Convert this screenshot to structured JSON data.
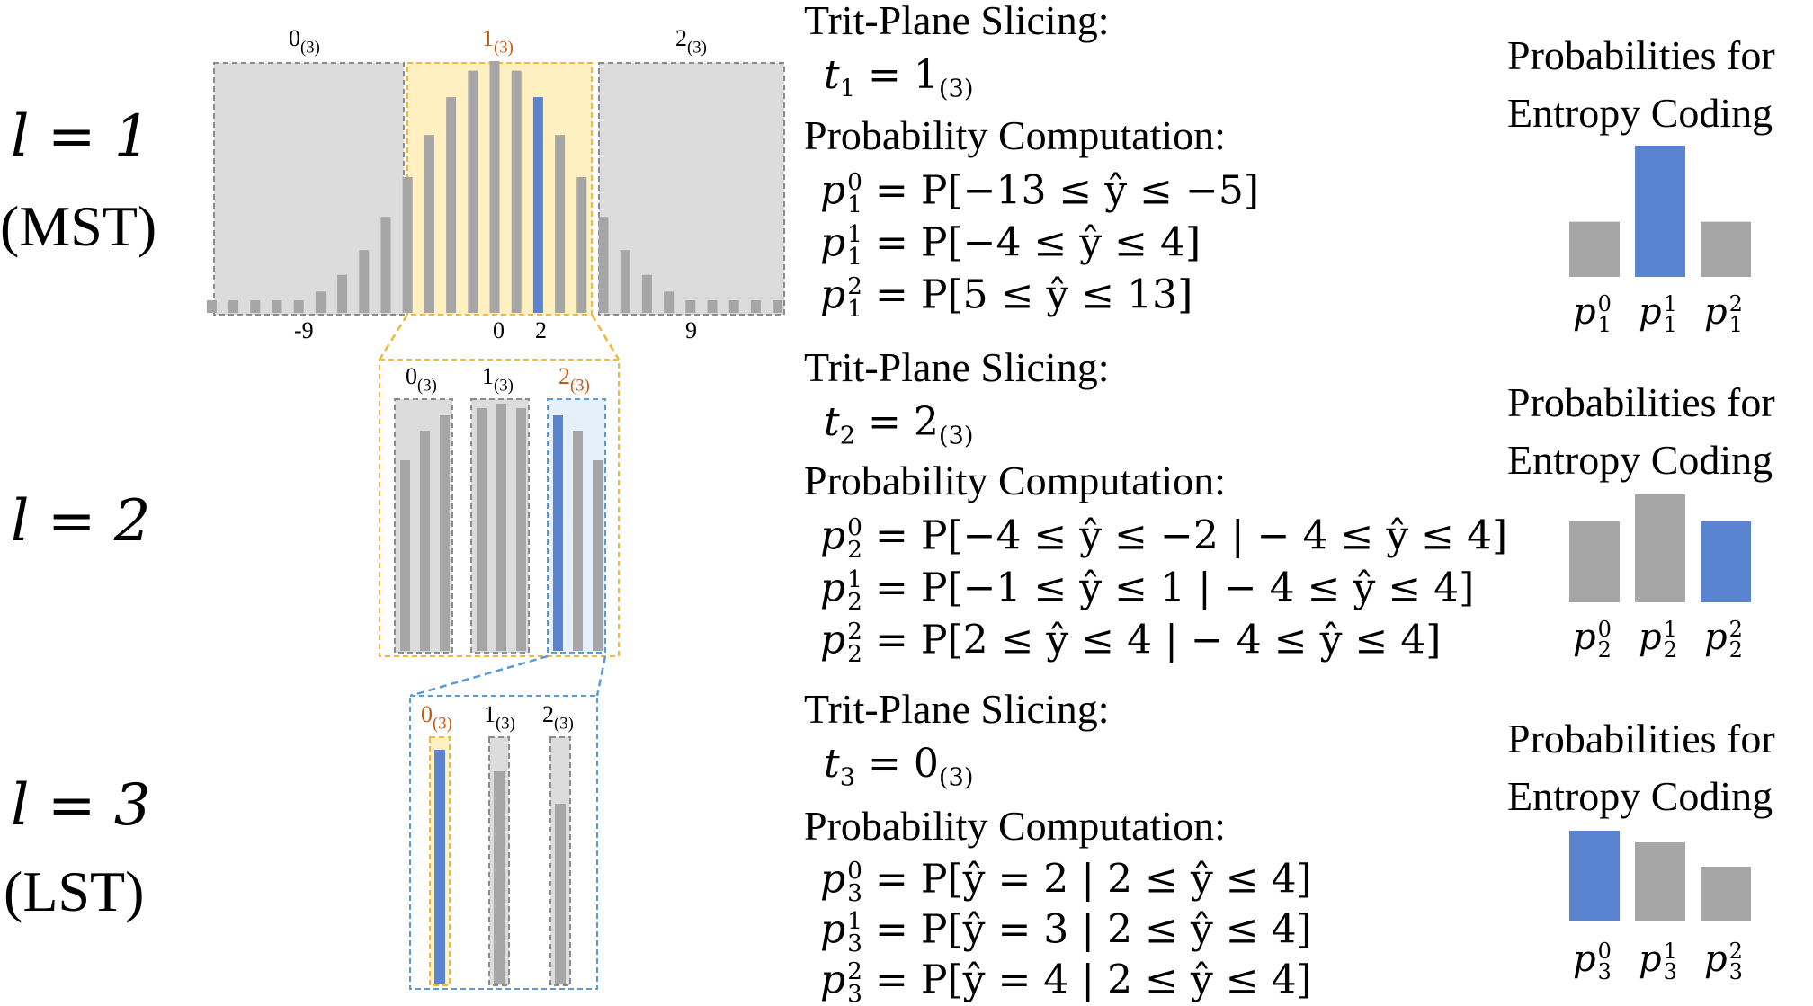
{
  "levels": [
    {
      "label": "l = 1",
      "sublabel": "(MST)",
      "slicing_title": "Trit-Plane Slicing:",
      "trit": {
        "var": "t",
        "index": "1",
        "value": "1",
        "base": "(3)"
      },
      "computation_title": "Probability Computation:",
      "equations": [
        {
          "k": "0",
          "idx": "1",
          "rhs": "= P[−13 ≤ ŷ ≤ −5]"
        },
        {
          "k": "1",
          "idx": "1",
          "rhs": "= P[−4 ≤ ŷ ≤ 4]"
        },
        {
          "k": "2",
          "idx": "1",
          "rhs": "= P[5 ≤ ŷ ≤ 13]"
        }
      ],
      "prob_title_1": "Probabilities for",
      "prob_title_2": "Entropy Coding",
      "prob_values": [
        0.42,
        1.0,
        0.42
      ],
      "selected": 1
    },
    {
      "label": "l = 2",
      "sublabel": "",
      "slicing_title": "Trit-Plane Slicing:",
      "trit": {
        "var": "t",
        "index": "2",
        "value": "2",
        "base": "(3)"
      },
      "computation_title": "Probability Computation:",
      "equations": [
        {
          "k": "0",
          "idx": "2",
          "rhs": "= P[−4 ≤ ŷ ≤ −2 | − 4 ≤ ŷ ≤ 4]"
        },
        {
          "k": "1",
          "idx": "2",
          "rhs": "= P[−1 ≤ ŷ ≤ 1 | − 4 ≤ ŷ ≤ 4]"
        },
        {
          "k": "2",
          "idx": "2",
          "rhs": "= P[2 ≤ ŷ ≤ 4 | − 4 ≤ ŷ ≤ 4]"
        }
      ],
      "prob_title_1": "Probabilities for",
      "prob_title_2": "Entropy Coding",
      "prob_values": [
        0.75,
        1.0,
        0.75
      ],
      "selected": 2
    },
    {
      "label": "l = 3",
      "sublabel": "(LST)",
      "slicing_title": "Trit-Plane Slicing:",
      "trit": {
        "var": "t",
        "index": "3",
        "value": "0",
        "base": "(3)"
      },
      "computation_title": "Probability Computation:",
      "equations": [
        {
          "k": "0",
          "idx": "3",
          "rhs": "= P[ŷ = 2 | 2 ≤ ŷ ≤ 4]"
        },
        {
          "k": "1",
          "idx": "3",
          "rhs": "= P[ŷ = 3 | 2 ≤ ŷ ≤ 4]"
        },
        {
          "k": "2",
          "idx": "3",
          "rhs": "= P[ŷ = 4 | 2 ≤ ŷ ≤ 4]"
        }
      ],
      "prob_title_1": "Probabilities for",
      "prob_title_2": "Entropy Coding",
      "prob_values": [
        1.0,
        0.87,
        0.6
      ],
      "selected": 0
    }
  ],
  "trit_labels": [
    "0",
    "1",
    "2"
  ],
  "trit_base": "(3)",
  "axis_ticks": [
    "-9",
    "0",
    "2",
    "9"
  ],
  "colors": {
    "bar": "#a6a6a6",
    "selected_bar": "#5b84d0",
    "panel_gray": "#dcdcdc",
    "panel_yellow": "#fff0c2",
    "panel_blue": "#e6f0fb",
    "dash_yellow": "#f0b83a",
    "dash_blue": "#5b9bd5",
    "dash_gray": "#8c8c8c",
    "highlight_text": "#c55a11"
  }
}
